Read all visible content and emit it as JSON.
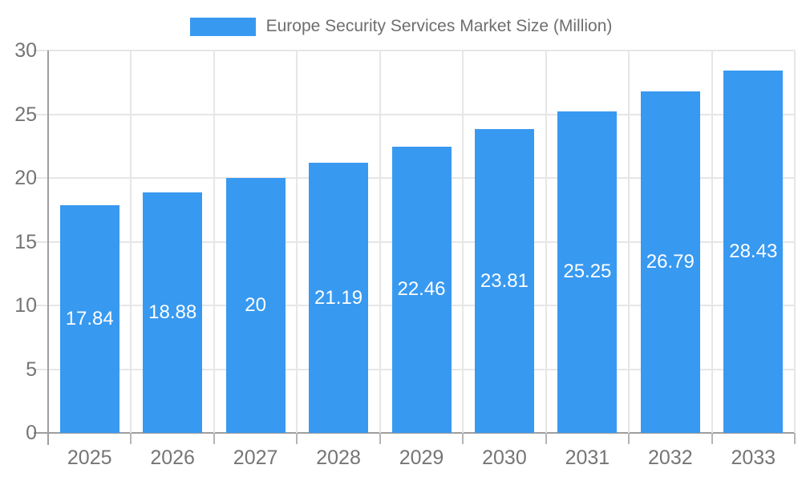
{
  "chart_data": {
    "type": "bar",
    "title": "Europe Security Services Market Size (Million)",
    "categories": [
      "2025",
      "2026",
      "2027",
      "2028",
      "2029",
      "2030",
      "2031",
      "2032",
      "2033"
    ],
    "values": [
      17.84,
      18.88,
      20,
      21.19,
      22.46,
      23.81,
      25.25,
      26.79,
      28.43
    ],
    "value_labels": [
      "17.84",
      "18.88",
      "20",
      "21.19",
      "22.46",
      "23.81",
      "25.25",
      "26.79",
      "28.43"
    ],
    "xlabel": "",
    "ylabel": "",
    "ylim": [
      0,
      30
    ],
    "yticks": [
      0,
      5,
      10,
      15,
      20,
      25,
      30
    ],
    "ytick_labels": [
      "0",
      "5",
      "10",
      "15",
      "20",
      "25",
      "30"
    ],
    "grid": true,
    "legend_position": "top",
    "colors": {
      "bar": "#3899F0",
      "bar_value_label": "#ffffff",
      "axis_text": "#757575",
      "legend_text": "#6e6e6e",
      "gridline": "#e6e6e6",
      "axis_line": "#9e9e9e",
      "tick_mark": "#b5b5b5",
      "background": "#ffffff"
    }
  }
}
